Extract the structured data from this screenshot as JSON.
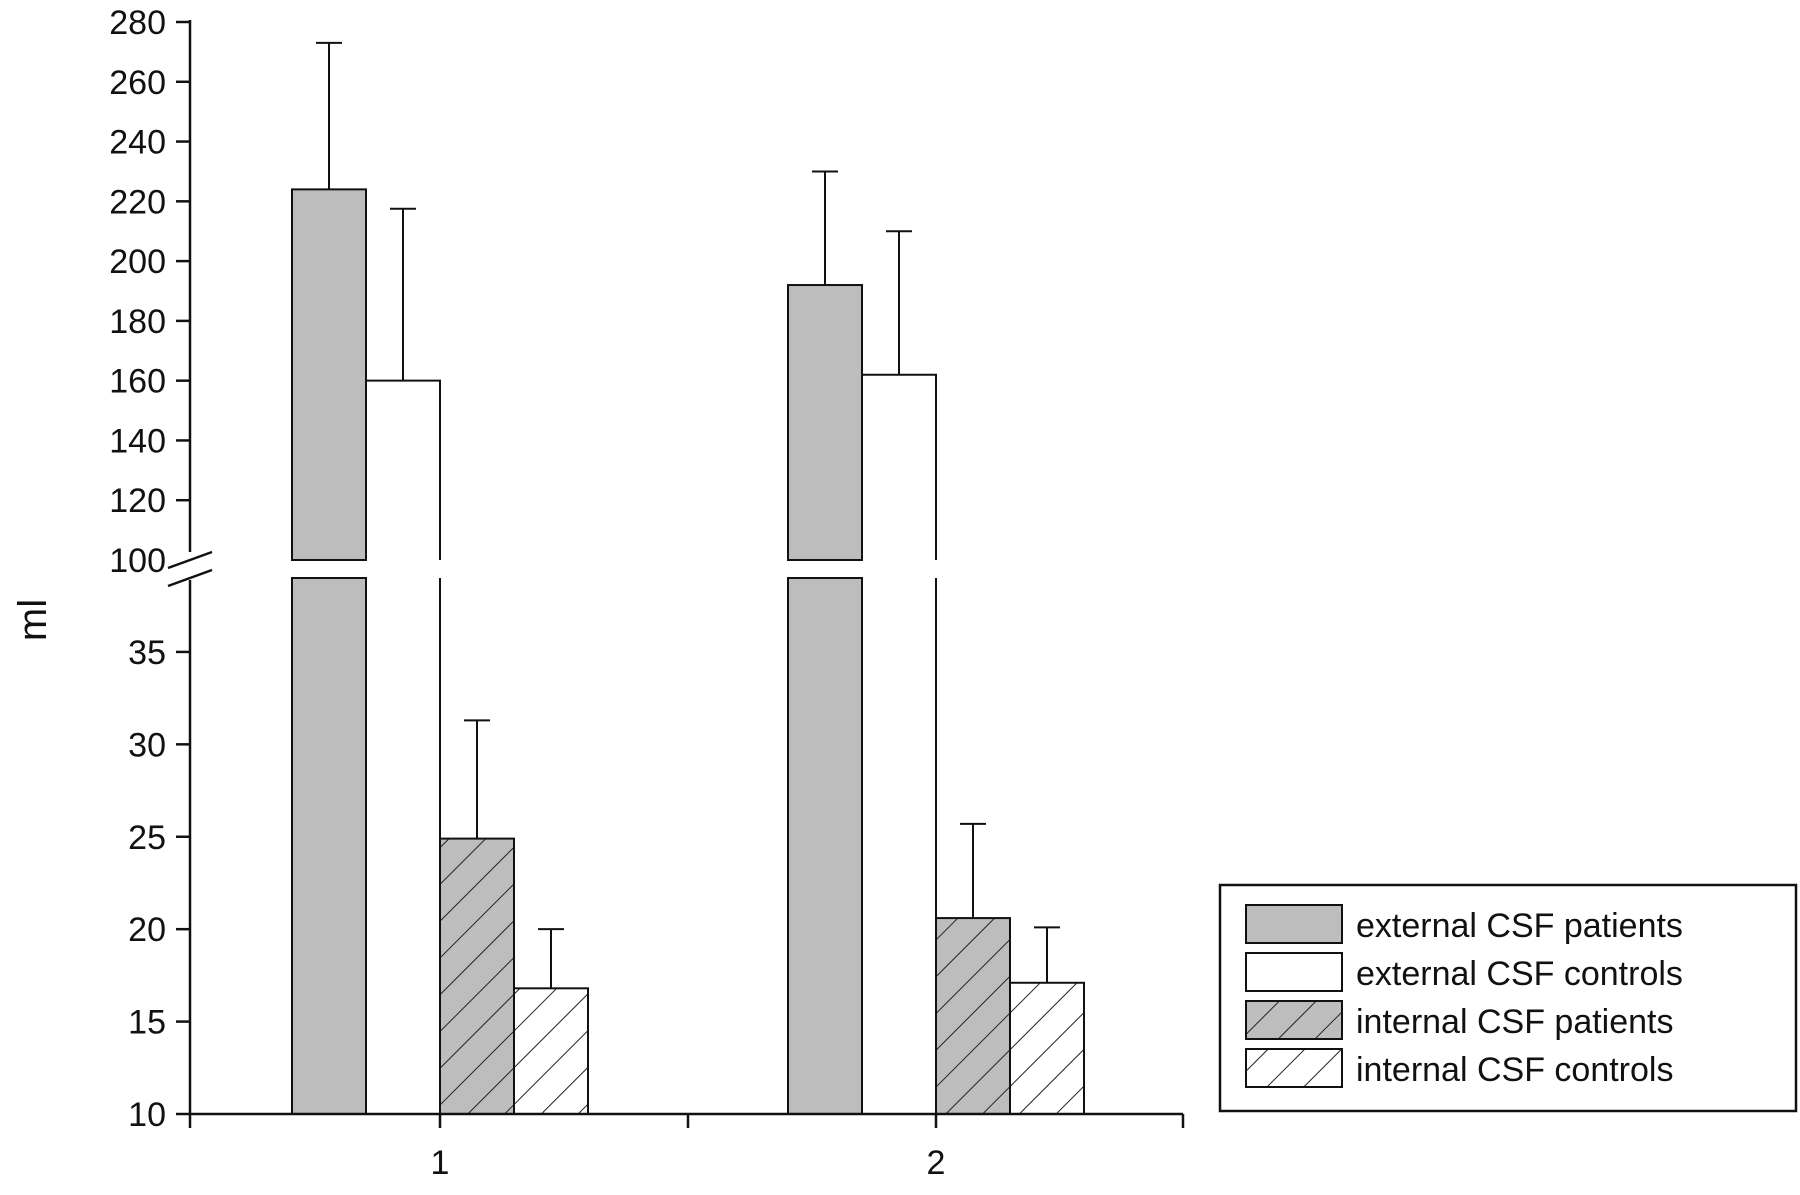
{
  "chart_data": {
    "type": "bar",
    "title": "",
    "xlabel": "",
    "ylabel": "ml",
    "categories": [
      "1",
      "2"
    ],
    "series": [
      {
        "name": "external CSF patients",
        "values": [
          224,
          192
        ],
        "error_plus": [
          49,
          38
        ],
        "fill": "#bdbdbd",
        "pattern": "none"
      },
      {
        "name": "external CSF controls",
        "values": [
          160,
          162
        ],
        "error_plus": [
          57.5,
          48
        ],
        "fill": "#ffffff",
        "pattern": "none"
      },
      {
        "name": "internal CSF patients",
        "values": [
          24.9,
          20.6
        ],
        "error_plus": [
          6.4,
          5.1
        ],
        "fill": "#bdbdbd",
        "pattern": "hatch"
      },
      {
        "name": "internal CSF controls",
        "values": [
          16.8,
          17.1
        ],
        "error_plus": [
          3.2,
          3.0
        ],
        "fill": "#ffffff",
        "pattern": "hatch"
      }
    ],
    "y_axis_break": {
      "lower_range": [
        10,
        39
      ],
      "lower_ticks": [
        10,
        15,
        20,
        25,
        30,
        35
      ],
      "upper_range": [
        100,
        280
      ],
      "upper_ticks": [
        100,
        120,
        140,
        160,
        180,
        200,
        220,
        240,
        260,
        280
      ]
    },
    "grid": false,
    "legend": "bottom-right"
  }
}
